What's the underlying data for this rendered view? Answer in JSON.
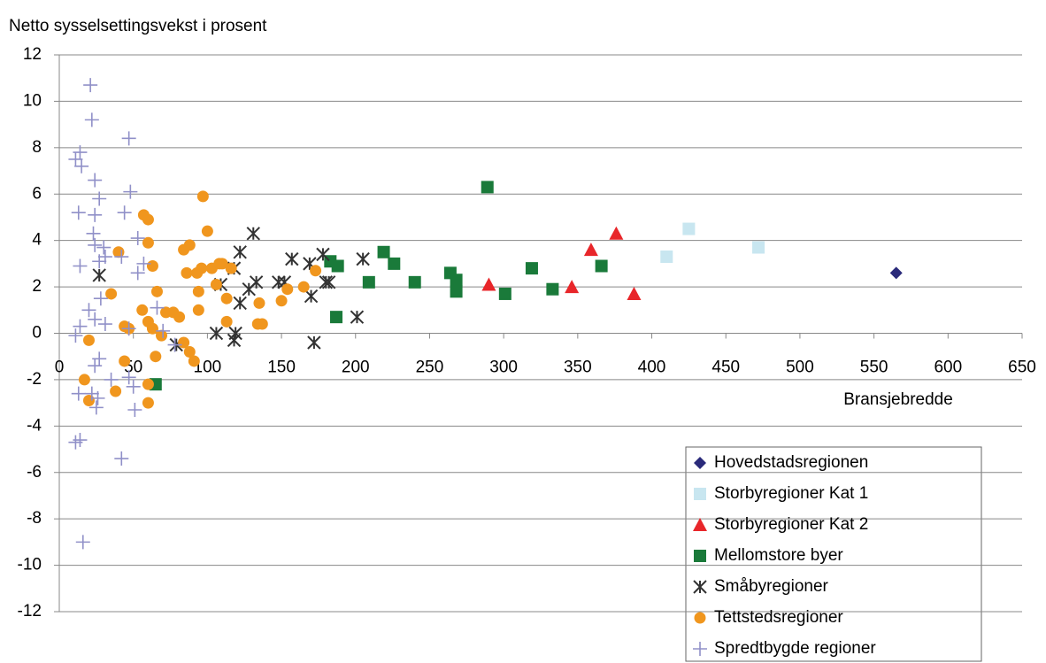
{
  "chart_data": {
    "type": "scatter",
    "y_label": "Netto sysselsettingsvekst i prosent",
    "x_label": "Bransjebredde",
    "xlim": [
      0,
      650
    ],
    "xticks": [
      0,
      50,
      100,
      150,
      200,
      250,
      300,
      350,
      400,
      450,
      500,
      550,
      600,
      650
    ],
    "ylim": [
      -12,
      12
    ],
    "yticks": [
      -12,
      -10,
      -8,
      -6,
      -4,
      -2,
      0,
      2,
      4,
      6,
      8,
      10,
      12
    ],
    "grid": true,
    "legend": "bottom-right",
    "series": [
      {
        "name": "Hovedstadsregionen",
        "color": "#2a2a7a",
        "marker": "diamond",
        "x": [
          565
        ],
        "y": [
          2.6
        ]
      },
      {
        "name": "Storbyregioner Kat 1",
        "color": "#c8e6f0",
        "marker": "square",
        "x": [
          410,
          425,
          472
        ],
        "y": [
          3.3,
          4.5,
          3.7
        ]
      },
      {
        "name": "Storbyregioner Kat 2",
        "color": "#e8262a",
        "marker": "triangle",
        "x": [
          290,
          346,
          359,
          376,
          388
        ],
        "y": [
          2.1,
          2.0,
          3.6,
          4.3,
          1.7
        ]
      },
      {
        "name": "Mellomstore byer",
        "color": "#1a7a3a",
        "marker": "square",
        "x": [
          289,
          65,
          183,
          188,
          187,
          209,
          219,
          226,
          240,
          264,
          268,
          268,
          301,
          319,
          333,
          366
        ],
        "y": [
          6.3,
          -2.2,
          3.1,
          2.9,
          0.7,
          2.2,
          3.5,
          3.0,
          2.2,
          2.6,
          2.3,
          1.8,
          1.7,
          2.8,
          1.9,
          2.9
        ]
      },
      {
        "name": "Småbyregioner",
        "color": "#333333",
        "marker": "asterisk",
        "x": [
          27,
          106,
          109,
          118,
          119,
          118,
          122,
          122,
          128,
          131,
          133,
          148,
          152,
          157,
          169,
          170,
          172,
          178,
          180,
          182,
          201,
          205,
          79
        ],
        "y": [
          2.5,
          0,
          2.1,
          -0.3,
          0,
          2.8,
          3.5,
          1.3,
          1.9,
          4.3,
          2.2,
          2.2,
          2.2,
          3.2,
          3.0,
          1.6,
          -0.4,
          3.4,
          2.2,
          2.2,
          0.7,
          3.2,
          -0.5
        ]
      },
      {
        "name": "Tettstedsregioner",
        "color": "#f0961e",
        "marker": "circle",
        "x": [
          17,
          20,
          20,
          35,
          38,
          40,
          44,
          44,
          47,
          56,
          57,
          60,
          60,
          60,
          60,
          60,
          63,
          63,
          65,
          66,
          69,
          72,
          77,
          81,
          84,
          84,
          86,
          88,
          88,
          93,
          94,
          94,
          96,
          97,
          100,
          103,
          106,
          108,
          110,
          113,
          113,
          116,
          134,
          135,
          137,
          150,
          154,
          165,
          173,
          91
        ],
        "y": [
          -2.0,
          -0.3,
          -2.9,
          1.7,
          -2.5,
          3.5,
          0.3,
          -1.2,
          0.2,
          1.0,
          5.1,
          0.5,
          4.9,
          3.9,
          -2.2,
          -3.0,
          2.9,
          0.2,
          -1.0,
          1.8,
          -0.1,
          0.9,
          0.9,
          0.7,
          3.6,
          -0.4,
          2.6,
          3.8,
          -0.8,
          2.6,
          1.0,
          1.8,
          2.8,
          5.9,
          4.4,
          2.8,
          2.1,
          3.0,
          3.0,
          1.5,
          0.5,
          2.8,
          0.4,
          1.3,
          0.4,
          1.4,
          1.9,
          2.0,
          2.7,
          -1.2
        ]
      },
      {
        "name": "Spredtbygde regioner",
        "color": "#9090c8",
        "marker": "plus",
        "x": [
          21,
          22,
          47,
          11,
          14,
          15,
          24,
          48,
          27,
          13,
          24,
          44,
          23,
          24,
          30,
          53,
          57,
          27,
          31,
          14,
          42,
          53,
          28,
          20,
          24,
          31,
          14,
          11,
          47,
          66,
          70,
          24,
          27,
          35,
          13,
          22,
          25,
          26,
          50,
          51,
          11,
          14,
          42,
          16,
          47,
          78
        ],
        "y": [
          10.7,
          9.2,
          8.4,
          7.5,
          7.8,
          7.2,
          6.6,
          6.1,
          5.8,
          5.2,
          5.1,
          5.2,
          4.3,
          3.8,
          3.7,
          4.1,
          3.0,
          3.1,
          3.3,
          2.9,
          3.3,
          2.6,
          1.5,
          1.0,
          0.6,
          0.4,
          0.3,
          -0.1,
          0.2,
          1.1,
          0.1,
          -1.4,
          -1.1,
          -2.0,
          -2.6,
          -2.6,
          -3.2,
          -2.8,
          -2.3,
          -3.3,
          -4.7,
          -4.6,
          -5.4,
          -9.0,
          -1.9,
          -0.5
        ]
      }
    ]
  }
}
